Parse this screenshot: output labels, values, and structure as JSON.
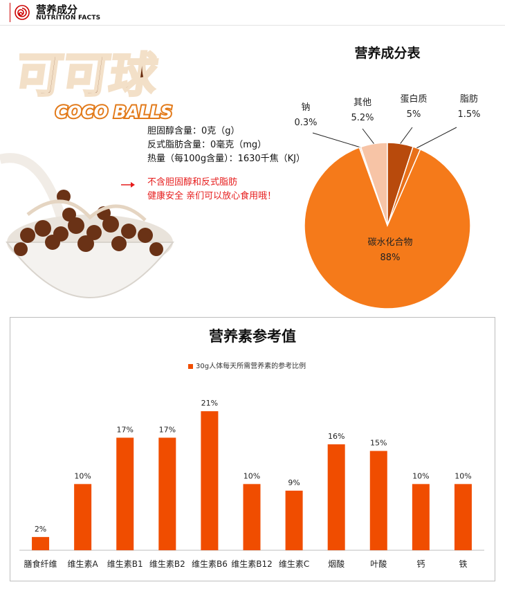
{
  "header": {
    "title": "营养成分",
    "subtitle": "NUTRITION FACTS"
  },
  "brand": {
    "name_cn": "可可球",
    "name_en": "COCO BALLS"
  },
  "info": {
    "lines": [
      "胆固醇含量：0克（g）",
      "反式脂肪含量：0毫克（mg）",
      "热量（每100g含量）：1630千焦（KJ）"
    ],
    "highlight": [
      "不含胆固醇和反式脂肪",
      "健康安全 亲们可以放心食用哦！"
    ]
  },
  "colors": {
    "accent": "#f04d00",
    "pie_main": "#f57a1a",
    "pie_dark": "#b84a0c",
    "pie_light": "#f7c4a6",
    "highlight_red": "#e61c1c"
  },
  "pie_chart": {
    "title": "营养成分表",
    "slices": [
      {
        "name": "碳水化合物",
        "value": 88,
        "label": "88%",
        "color": "#f57a1a"
      },
      {
        "name": "钠",
        "value": 0.3,
        "label": "0.3%",
        "color": "#f7c4a6"
      },
      {
        "name": "其他",
        "value": 5.2,
        "label": "5.2%",
        "color": "#f7c4a6"
      },
      {
        "name": "蛋白质",
        "value": 5,
        "label": "5%",
        "color": "#b84a0c"
      },
      {
        "name": "脂肪",
        "value": 1.5,
        "label": "1.5%",
        "color": "#e8701a"
      }
    ]
  },
  "chart_data": {
    "type": "bar",
    "title": "营养素参考值",
    "legend": "30g人体每天所需营养素的参考比例",
    "categories": [
      "膳食纤维",
      "维生素A",
      "维生素B1",
      "维生素B2",
      "维生素B6",
      "维生素B12",
      "维生素C",
      "烟酸",
      "叶酸",
      "钙",
      "铁"
    ],
    "values": [
      2,
      10,
      17,
      17,
      21,
      10,
      9,
      16,
      15,
      10,
      10
    ],
    "value_labels": [
      "2%",
      "10%",
      "17%",
      "17%",
      "21%",
      "10%",
      "9%",
      "16%",
      "15%",
      "10%",
      "10%"
    ],
    "ylim": [
      0,
      23
    ]
  }
}
